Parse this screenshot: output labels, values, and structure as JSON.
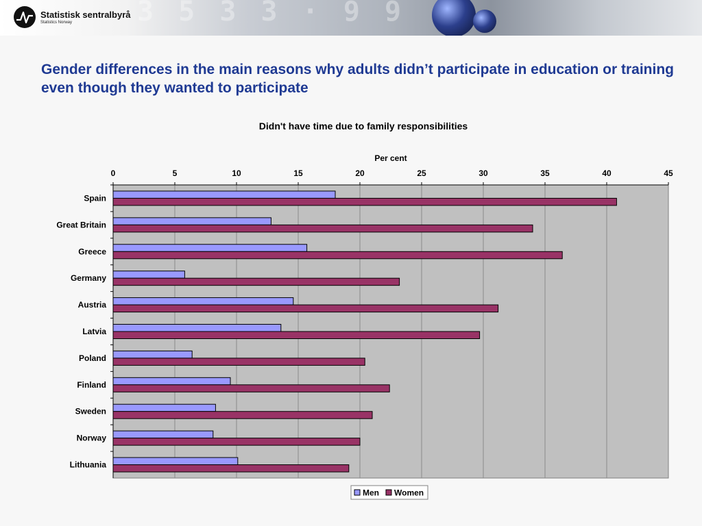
{
  "header": {
    "logo_name": "Statistisk sentralbyrå",
    "logo_sub": "Statistics Norway",
    "logo_icon": "ssb-logo-icon"
  },
  "slide": {
    "title": "Gender differences in the main reasons why adults didn’t participate in education or training even though they wanted to participate"
  },
  "colors": {
    "men": "#9999ff",
    "women": "#993366",
    "plot_bg": "#c0c0c0",
    "title": "#1f3a93"
  },
  "chart_data": {
    "type": "bar",
    "orientation": "horizontal",
    "title": "Didn't have time due to family responsibilities",
    "xlabel": "Per cent",
    "ylabel": "",
    "xlim": [
      0,
      45
    ],
    "x_ticks": [
      0,
      5,
      10,
      15,
      20,
      25,
      30,
      35,
      40,
      45
    ],
    "x_axis_position": "top",
    "grid": true,
    "legend": "bottom",
    "categories": [
      "Spain",
      "Great Britain",
      "Greece",
      "Germany",
      "Austria",
      "Latvia",
      "Poland",
      "Finland",
      "Sweden",
      "Norway",
      "Lithuania"
    ],
    "series": [
      {
        "name": "Men",
        "values": [
          18.0,
          12.8,
          15.7,
          5.8,
          14.6,
          13.6,
          6.4,
          9.5,
          8.3,
          8.1,
          10.1
        ]
      },
      {
        "name": "Women",
        "values": [
          40.8,
          34.0,
          36.4,
          23.2,
          31.2,
          29.7,
          20.4,
          22.4,
          21.0,
          20.0,
          19.1
        ]
      }
    ]
  }
}
